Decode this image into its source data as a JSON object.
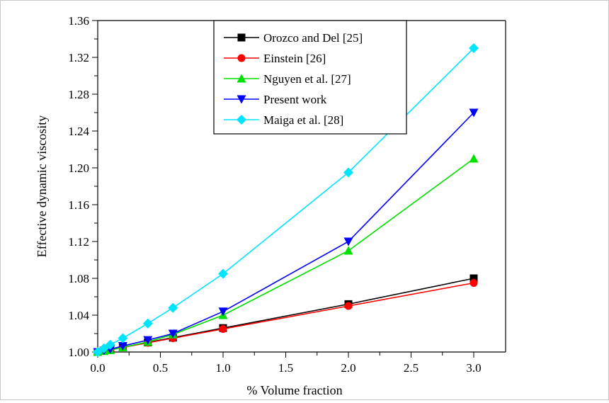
{
  "chart_data": {
    "type": "line",
    "xlabel": "% Volume fraction",
    "ylabel": "Effective dynamic viscosity",
    "xlim": [
      0.0,
      3.0
    ],
    "ylim": [
      1.0,
      1.36
    ],
    "x_ticks": [
      "0.0",
      "0.5",
      "1.0",
      "1.5",
      "2.0",
      "2.5",
      "3.0"
    ],
    "y_ticks": [
      "1.00",
      "1.04",
      "1.08",
      "1.12",
      "1.16",
      "1.20",
      "1.24",
      "1.28",
      "1.32",
      "1.36"
    ],
    "grid": false,
    "legend_position": "top-center",
    "series": [
      {
        "name": "Orozco and Del [25]",
        "color": "#000000",
        "marker": "square",
        "x": [
          0.0,
          0.05,
          0.1,
          0.2,
          0.4,
          0.6,
          1.0,
          2.0,
          3.0
        ],
        "y": [
          1.0,
          1.0013,
          1.0026,
          1.0052,
          1.0104,
          1.0156,
          1.026,
          1.052,
          1.08
        ]
      },
      {
        "name": "Einstein [26]",
        "color": "#ff0000",
        "marker": "circle",
        "x": [
          0.0,
          0.05,
          0.1,
          0.2,
          0.4,
          0.6,
          1.0,
          2.0,
          3.0
        ],
        "y": [
          1.0,
          1.00125,
          1.0025,
          1.005,
          1.01,
          1.015,
          1.025,
          1.05,
          1.075
        ]
      },
      {
        "name": "Nguyen et al. [27]",
        "color": "#00e000",
        "marker": "triangle-up",
        "x": [
          0.0,
          0.05,
          0.1,
          0.2,
          0.4,
          0.6,
          1.0,
          2.0,
          3.0
        ],
        "y": [
          1.0,
          1.001,
          1.002,
          1.005,
          1.011,
          1.019,
          1.04,
          1.11,
          1.21
        ]
      },
      {
        "name": "Present work",
        "color": "#0000ff",
        "marker": "triangle-down",
        "x": [
          0.0,
          0.05,
          0.1,
          0.2,
          0.4,
          0.6,
          1.0,
          2.0,
          3.0
        ],
        "y": [
          1.0,
          1.0015,
          1.003,
          1.0065,
          1.013,
          1.02,
          1.044,
          1.12,
          1.26
        ]
      },
      {
        "name": "Maiga et al. [28]",
        "color": "#00e5ff",
        "marker": "diamond",
        "x": [
          0.0,
          0.05,
          0.1,
          0.2,
          0.4,
          0.6,
          1.0,
          2.0,
          3.0
        ],
        "y": [
          1.0,
          1.004,
          1.008,
          1.015,
          1.031,
          1.048,
          1.085,
          1.195,
          1.33
        ]
      }
    ]
  }
}
